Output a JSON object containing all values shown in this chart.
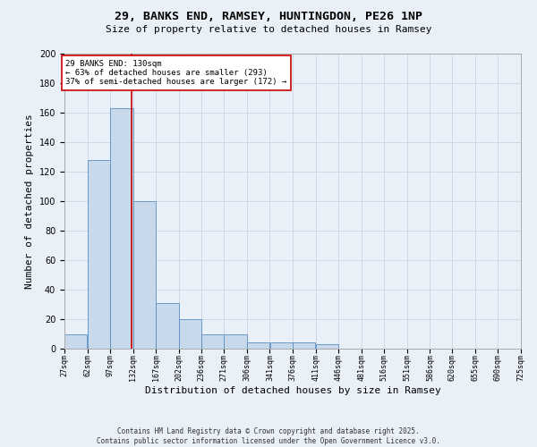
{
  "title": "29, BANKS END, RAMSEY, HUNTINGDON, PE26 1NP",
  "subtitle": "Size of property relative to detached houses in Ramsey",
  "xlabel": "Distribution of detached houses by size in Ramsey",
  "ylabel": "Number of detached properties",
  "bins": [
    27,
    62,
    97,
    132,
    167,
    202,
    236,
    271,
    306,
    341,
    376,
    411,
    446,
    481,
    516,
    551,
    586,
    620,
    655,
    690,
    725
  ],
  "bar_heights": [
    10,
    128,
    163,
    100,
    31,
    20,
    10,
    10,
    4,
    4,
    4,
    3,
    0,
    0,
    0,
    0,
    0,
    0,
    0,
    0
  ],
  "bar_color": "#c9d9ec",
  "bar_edge_color": "#5a8fc3",
  "grid_color": "#d0d8e8",
  "background_color": "#eaf0f8",
  "red_line_x": 130,
  "annotation_text": "29 BANKS END: 130sqm\n← 63% of detached houses are smaller (293)\n37% of semi-detached houses are larger (172) →",
  "annotation_box_color": "#ffffff",
  "annotation_border_color": "#cc0000",
  "footer": "Contains HM Land Registry data © Crown copyright and database right 2025.\nContains public sector information licensed under the Open Government Licence v3.0.",
  "ylim": [
    0,
    200
  ],
  "yticks": [
    0,
    20,
    40,
    60,
    80,
    100,
    120,
    140,
    160,
    180,
    200
  ],
  "title_fontsize": 9.5,
  "subtitle_fontsize": 8,
  "tick_fontsize": 6,
  "ylabel_fontsize": 8,
  "xlabel_fontsize": 8,
  "annotation_fontsize": 6.5,
  "footer_fontsize": 5.5
}
